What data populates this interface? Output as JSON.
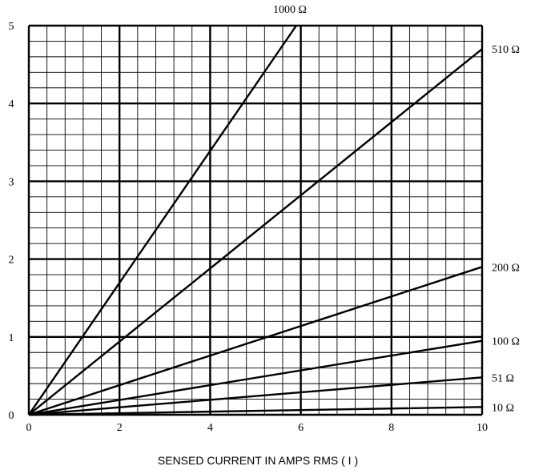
{
  "chart_data": {
    "type": "line",
    "title": "",
    "xlabel": "SENSED CURRENT IN AMPS RMS ( I )",
    "ylabel": "",
    "xlim": [
      0,
      10
    ],
    "ylim": [
      0,
      5
    ],
    "x_ticks": [
      "0",
      "2",
      "4",
      "6",
      "8",
      "10"
    ],
    "y_ticks": [
      "0",
      "1",
      "2",
      "3",
      "4",
      "5"
    ],
    "grid": true,
    "minor_grid": {
      "x_step": 0.4,
      "y_step": 0.2
    },
    "series": [
      {
        "name": "1000 Ω",
        "x": [
          0,
          5.9
        ],
        "y": [
          0,
          5.0
        ]
      },
      {
        "name": "510 Ω",
        "x": [
          0,
          10
        ],
        "y": [
          0,
          4.7
        ]
      },
      {
        "name": "200 Ω",
        "x": [
          0,
          10
        ],
        "y": [
          0,
          1.9
        ]
      },
      {
        "name": "100 Ω",
        "x": [
          0,
          10
        ],
        "y": [
          0,
          0.95
        ]
      },
      {
        "name": "51 Ω",
        "x": [
          0,
          10
        ],
        "y": [
          0,
          0.48
        ]
      },
      {
        "name": "10 Ω",
        "x": [
          0,
          10
        ],
        "y": [
          0,
          0.1
        ]
      }
    ]
  }
}
